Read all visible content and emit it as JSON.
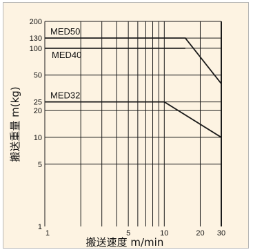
{
  "chart_data": {
    "type": "line",
    "xlabel": "搬送速度 m/min",
    "ylabel": "搬送重量 m(kg)",
    "x_scale": "log",
    "y_scale": "log",
    "xlim": [
      1,
      30
    ],
    "ylim": [
      1,
      200
    ],
    "grid": true,
    "x_ticks": [
      {
        "value": 1,
        "label": "1"
      },
      {
        "value": 5,
        "label": "5"
      },
      {
        "value": 10,
        "label": "10"
      },
      {
        "value": 20,
        "label": "20"
      },
      {
        "value": 30,
        "label": "30"
      }
    ],
    "x_gridlines": [
      1,
      2,
      3,
      4,
      5,
      6,
      7,
      8,
      9,
      10,
      20,
      30
    ],
    "y_ticks": [
      {
        "value": 1,
        "label": "1"
      },
      {
        "value": 5,
        "label": "5"
      },
      {
        "value": 10,
        "label": "10"
      },
      {
        "value": 20,
        "label": "20"
      },
      {
        "value": 25,
        "label": "25"
      },
      {
        "value": 50,
        "label": "50"
      },
      {
        "value": 100,
        "label": "100"
      },
      {
        "value": 130,
        "label": "130"
      },
      {
        "value": 200,
        "label": "200"
      }
    ],
    "y_gridlines": [
      5,
      10,
      20,
      25,
      50,
      100,
      130,
      200
    ],
    "series": [
      {
        "name": "MED50",
        "x": [
          1,
          15,
          30
        ],
        "y": [
          130,
          130,
          40
        ]
      },
      {
        "name": "MED40",
        "x": [
          1,
          15
        ],
        "y": [
          100,
          100
        ]
      },
      {
        "name": "MED32",
        "x": [
          1,
          10,
          30
        ],
        "y": [
          25,
          25,
          10
        ]
      }
    ],
    "colors": {
      "background": "#fdf3e2",
      "grid": "#1a1a1a",
      "line": "#1a1a1a"
    }
  }
}
